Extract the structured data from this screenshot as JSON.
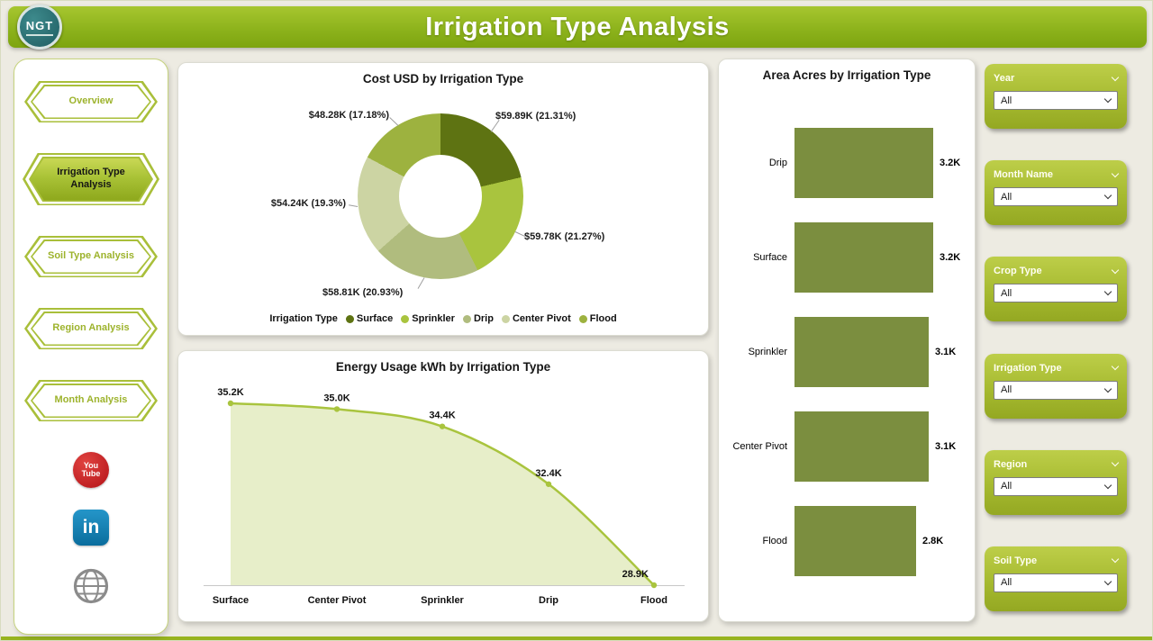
{
  "page": {
    "title": "Irrigation Type Analysis"
  },
  "logo": {
    "text": "NGT"
  },
  "sidebar": {
    "items": [
      {
        "label": "Overview",
        "active": false
      },
      {
        "label": "Irrigation Type Analysis",
        "active": true
      },
      {
        "label": "Soil Type Analysis",
        "active": false
      },
      {
        "label": "Region Analysis",
        "active": false
      },
      {
        "label": "Month Analysis",
        "active": false
      }
    ],
    "social": {
      "youtube": {
        "line1": "You",
        "line2": "Tube"
      },
      "linkedin": {
        "label": "in"
      }
    }
  },
  "slicers": [
    {
      "label": "Year",
      "value": "All"
    },
    {
      "label": "Month Name",
      "value": "All"
    },
    {
      "label": "Crop Type",
      "value": "All"
    },
    {
      "label": "Irrigation Type",
      "value": "All"
    },
    {
      "label": "Region",
      "value": "All"
    },
    {
      "label": "Soil Type",
      "value": "All"
    }
  ],
  "colors": {
    "header_green": "#8fb31d",
    "nav_green": "#a9bf3a",
    "slicer_green": "#a6ba30",
    "youtube_red": "#b31217",
    "linkedin_blue": "#0a6d9d"
  },
  "chart_data": [
    {
      "type": "pie",
      "donut": true,
      "title": "Cost USD by Irrigation Type",
      "legend_title": "Irrigation Type",
      "legend_position": "bottom",
      "slices": [
        {
          "name": "Surface",
          "value_k_usd": 59.89,
          "pct": 21.31,
          "label": "$59.89K (21.31%)",
          "color": "#5e7312"
        },
        {
          "name": "Sprinkler",
          "value_k_usd": 59.78,
          "pct": 21.27,
          "label": "$59.78K (21.27%)",
          "color": "#a9c43e"
        },
        {
          "name": "Drip",
          "value_k_usd": 58.81,
          "pct": 20.93,
          "label": "$58.81K (20.93%)",
          "color": "#b0bc7e"
        },
        {
          "name": "Center Pivot",
          "value_k_usd": 54.24,
          "pct": 19.3,
          "label": "$54.24K (19.3%)",
          "color": "#ccd4a3"
        },
        {
          "name": "Flood",
          "value_k_usd": 48.28,
          "pct": 17.18,
          "label": "$48.28K (17.18%)",
          "color": "#9db23f"
        }
      ]
    },
    {
      "type": "area",
      "title": "Energy Usage kWh by Irrigation Type",
      "categories": [
        "Surface",
        "Center Pivot",
        "Sprinkler",
        "Drip",
        "Flood"
      ],
      "values": [
        35.2,
        35.0,
        34.4,
        32.4,
        28.9
      ],
      "value_labels": [
        "35.2K",
        "35.0K",
        "34.4K",
        "32.4K",
        "28.9K"
      ],
      "line_color": "#a9c43e",
      "fill_color": "#e7eec9",
      "y_axis_visible": false,
      "grid": false
    },
    {
      "type": "bar",
      "orientation": "horizontal",
      "title": "Area Acres by Irrigation Type",
      "categories": [
        "Drip",
        "Surface",
        "Sprinkler",
        "Center Pivot",
        "Flood"
      ],
      "values": [
        3.2,
        3.2,
        3.1,
        3.1,
        2.8
      ],
      "value_labels": [
        "3.2K",
        "3.2K",
        "3.1K",
        "3.1K",
        "2.8K"
      ],
      "bar_color": "#7b8e3f",
      "x_axis_visible": false,
      "grid": false
    }
  ]
}
